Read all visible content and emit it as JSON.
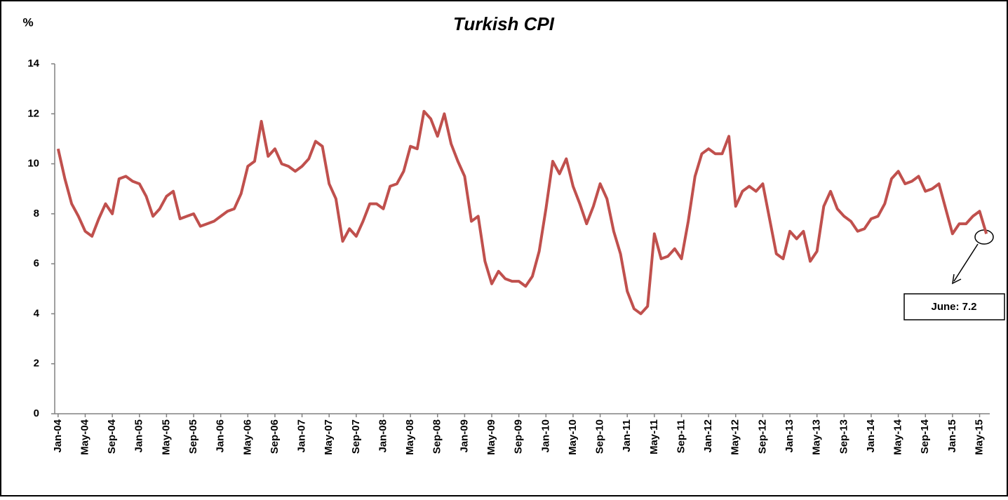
{
  "chart_data": {
    "type": "line",
    "title": "Turkish CPI",
    "y_label": "%",
    "annotation": "June: 7.2",
    "color": "#c0504d",
    "ylim": [
      0,
      14
    ],
    "yticks": [
      0,
      2,
      4,
      6,
      8,
      10,
      12,
      14
    ],
    "categories": [
      "Jan-04",
      null,
      null,
      null,
      "May-04",
      null,
      null,
      null,
      "Sep-04",
      null,
      null,
      null,
      "Jan-05",
      null,
      null,
      null,
      "May-05",
      null,
      null,
      null,
      "Sep-05",
      null,
      null,
      null,
      "Jan-06",
      null,
      null,
      null,
      "May-06",
      null,
      null,
      null,
      "Sep-06",
      null,
      null,
      null,
      "Jan-07",
      null,
      null,
      null,
      "May-07",
      null,
      null,
      null,
      "Sep-07",
      null,
      null,
      null,
      "Jan-08",
      null,
      null,
      null,
      "May-08",
      null,
      null,
      null,
      "Sep-08",
      null,
      null,
      null,
      "Jan-09",
      null,
      null,
      null,
      "May-09",
      null,
      null,
      null,
      "Sep-09",
      null,
      null,
      null,
      "Jan-10",
      null,
      null,
      null,
      "May-10",
      null,
      null,
      null,
      "Sep-10",
      null,
      null,
      null,
      "Jan-11",
      null,
      null,
      null,
      "May-11",
      null,
      null,
      null,
      "Sep-11",
      null,
      null,
      null,
      "Jan-12",
      null,
      null,
      null,
      "May-12",
      null,
      null,
      null,
      "Sep-12",
      null,
      null,
      null,
      "Jan-13",
      null,
      null,
      null,
      "May-13",
      null,
      null,
      null,
      "Sep-13",
      null,
      null,
      null,
      "Jan-14",
      null,
      null,
      null,
      "May-14",
      null,
      null,
      null,
      "Sep-14",
      null,
      null,
      null,
      "Jan-15",
      null,
      null,
      null,
      "May-15",
      null
    ],
    "values": [
      10.6,
      9.4,
      8.4,
      7.9,
      7.3,
      7.1,
      7.8,
      8.4,
      8.0,
      9.4,
      9.5,
      9.3,
      9.2,
      8.7,
      7.9,
      8.2,
      8.7,
      8.9,
      7.8,
      7.9,
      8.0,
      7.5,
      7.6,
      7.7,
      7.9,
      8.1,
      8.2,
      8.8,
      9.9,
      10.1,
      11.7,
      10.3,
      10.6,
      10.0,
      9.9,
      9.7,
      9.9,
      10.2,
      10.9,
      10.7,
      9.2,
      8.6,
      6.9,
      7.4,
      7.1,
      7.7,
      8.4,
      8.4,
      8.2,
      9.1,
      9.2,
      9.7,
      10.7,
      10.6,
      12.1,
      11.8,
      11.1,
      12.0,
      10.8,
      10.1,
      9.5,
      7.7,
      7.9,
      6.1,
      5.2,
      5.7,
      5.4,
      5.3,
      5.3,
      5.1,
      5.5,
      6.5,
      8.2,
      10.1,
      9.6,
      10.2,
      9.1,
      8.4,
      7.6,
      8.3,
      9.2,
      8.6,
      7.3,
      6.4,
      4.9,
      4.2,
      4.0,
      4.3,
      7.2,
      6.2,
      6.3,
      6.6,
      6.2,
      7.7,
      9.5,
      10.4,
      10.6,
      10.4,
      10.4,
      11.1,
      8.3,
      8.9,
      9.1,
      8.9,
      9.2,
      7.8,
      6.4,
      6.2,
      7.3,
      7.0,
      7.3,
      6.1,
      6.5,
      8.3,
      8.9,
      8.2,
      7.9,
      7.7,
      7.3,
      7.4,
      7.8,
      7.9,
      8.4,
      9.4,
      9.7,
      9.2,
      9.3,
      9.5,
      8.9,
      9.0,
      9.2,
      8.2,
      7.2,
      7.6,
      7.6,
      7.9,
      8.1,
      7.2
    ]
  }
}
